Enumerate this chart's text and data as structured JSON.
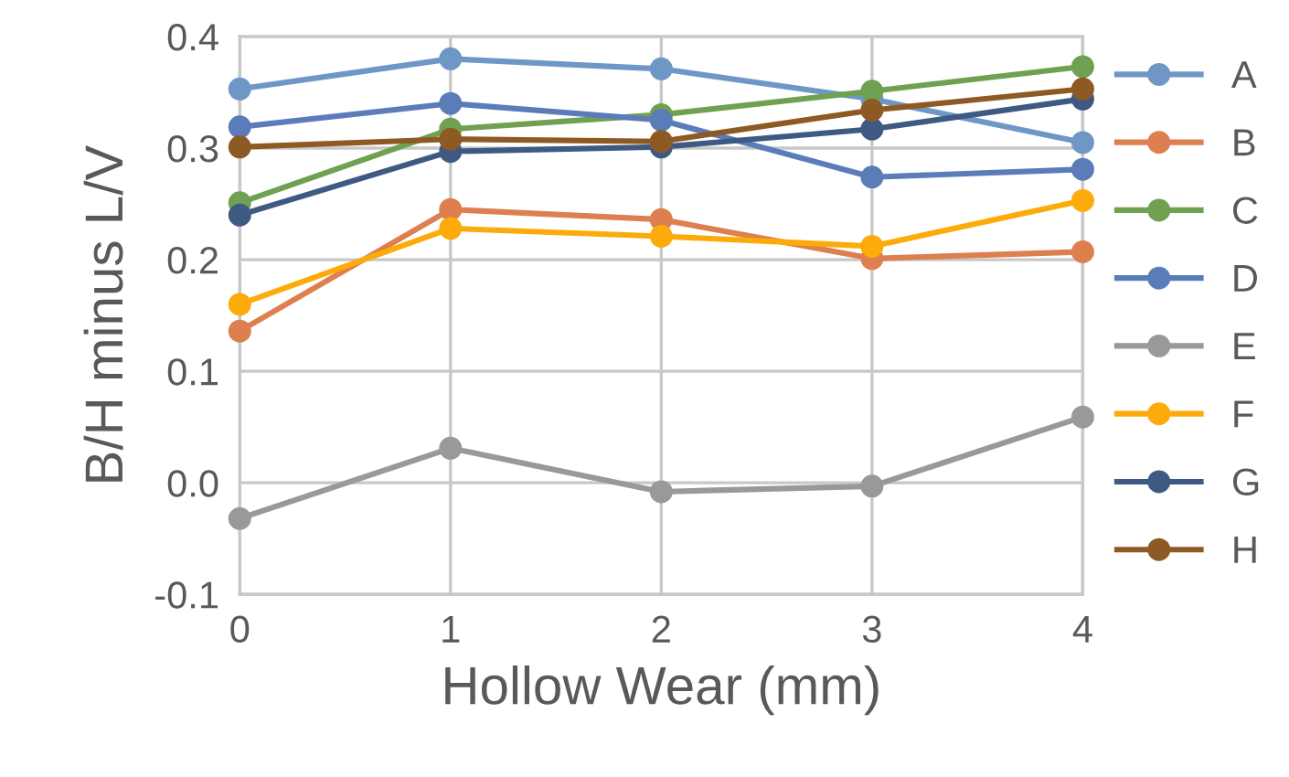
{
  "chart_data": {
    "type": "line",
    "xlabel": "Hollow Wear (mm)",
    "ylabel": "B/H minus L/V",
    "x": [
      0,
      1,
      2,
      3,
      4
    ],
    "xlim": [
      0,
      4
    ],
    "xticks": [
      0,
      1,
      2,
      3,
      4
    ],
    "ylim": [
      -0.1,
      0.4
    ],
    "yticks": [
      {
        "value": -0.1,
        "label": "-0.1"
      },
      {
        "value": 0,
        "label": "0.0"
      },
      {
        "value": 0.1,
        "label": "0.1"
      },
      {
        "value": 0.2,
        "label": "0.2"
      },
      {
        "value": 0.3,
        "label": "0.3"
      },
      {
        "value": 0.4,
        "label": "0.4"
      }
    ],
    "grid": true,
    "legend": "right",
    "marker": "circle",
    "line_style": "solid",
    "series": [
      {
        "name": "A",
        "color": "#6f97c6",
        "values": [
          0.353,
          0.38,
          0.371,
          0.344,
          0.305
        ]
      },
      {
        "name": "B",
        "color": "#dd7f4f",
        "values": [
          0.136,
          0.245,
          0.236,
          0.201,
          0.207
        ]
      },
      {
        "name": "C",
        "color": "#70a052",
        "values": [
          0.251,
          0.317,
          0.33,
          0.351,
          0.373
        ]
      },
      {
        "name": "D",
        "color": "#5a7cb8",
        "values": [
          0.319,
          0.34,
          0.325,
          0.274,
          0.281
        ]
      },
      {
        "name": "E",
        "color": "#999999",
        "values": [
          -0.032,
          0.031,
          -0.008,
          -0.003,
          0.059
        ]
      },
      {
        "name": "F",
        "color": "#fdab0b",
        "values": [
          0.16,
          0.228,
          0.221,
          0.212,
          0.253
        ]
      },
      {
        "name": "G",
        "color": "#3e5a82",
        "values": [
          0.24,
          0.297,
          0.301,
          0.317,
          0.344
        ]
      },
      {
        "name": "H",
        "color": "#8e5a23",
        "values": [
          0.301,
          0.308,
          0.306,
          0.334,
          0.353
        ]
      }
    ]
  }
}
